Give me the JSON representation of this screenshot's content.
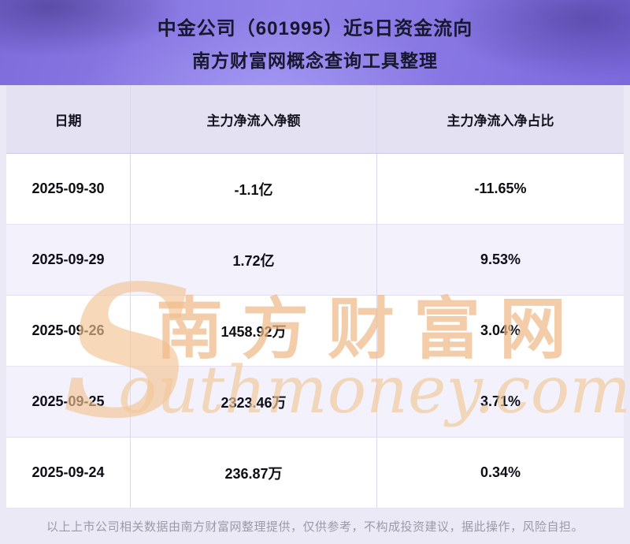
{
  "chart_data": {
    "type": "table",
    "title": "中金公司（601995）近5日资金流向",
    "subtitle": "南方财富网概念查询工具整理",
    "columns": [
      "日期",
      "主力净流入净额",
      "主力净流入净占比"
    ],
    "rows": [
      [
        "2025-09-30",
        "-1.1亿",
        "-11.65%"
      ],
      [
        "2025-09-29",
        "1.72亿",
        "9.53%"
      ],
      [
        "2025-09-26",
        "1458.92万",
        "3.04%"
      ],
      [
        "2025-09-25",
        "2323.46万",
        "3.71%"
      ],
      [
        "2025-09-24",
        "236.87万",
        "0.34%"
      ]
    ],
    "legend_position": "none",
    "grid": "table-lines"
  },
  "watermark": {
    "en_initial": "S",
    "cn": "南方财富网",
    "en_rest": "outhmoney.com"
  },
  "footer": {
    "disclaimer": "以上上市公司相关数据由南方财富网整理提供，仅供参考，不构成投资建议，据此操作，风险自担。"
  },
  "colors": {
    "banner_purple": "#8274e3",
    "header_row_bg": "#e4e1f3",
    "stripe_row_bg": "#f3f1fb",
    "row_bg": "#ffffff",
    "page_bg": "#ece9f7",
    "watermark_orange": "#eeba88",
    "title_text": "#17172e",
    "cell_text": "#0e0e16",
    "footer_text": "#9b99a9"
  }
}
